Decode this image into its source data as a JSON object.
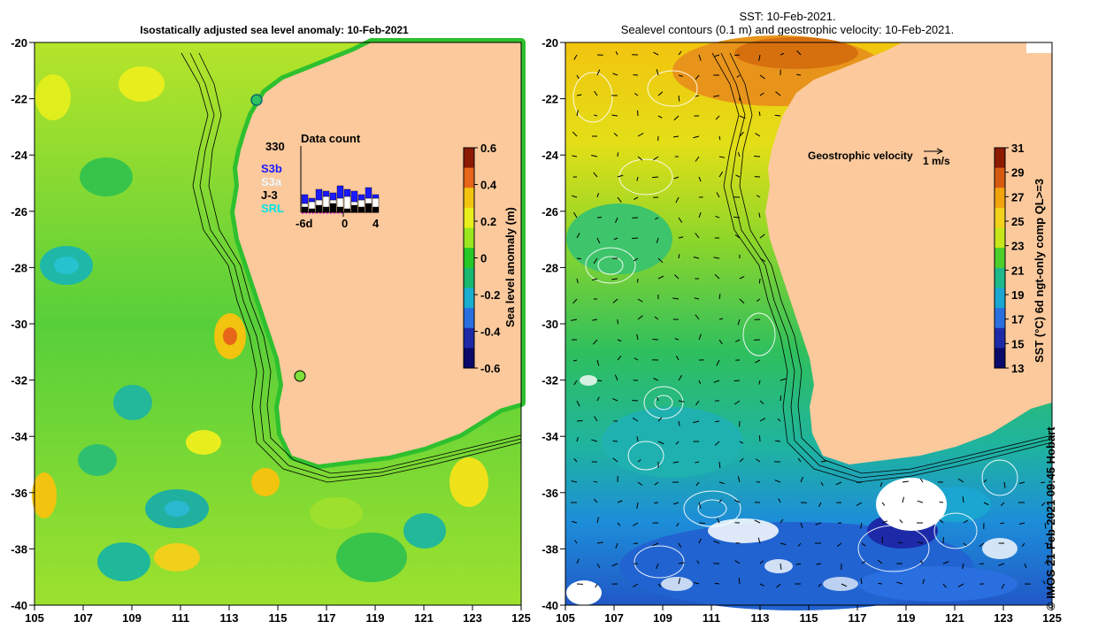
{
  "left_panel": {
    "title": "Isostatically adjusted sea level anomaly: 10-Feb-2021",
    "x_ticks": [
      "105",
      "107",
      "109",
      "111",
      "113",
      "115",
      "117",
      "119",
      "121",
      "123",
      "125"
    ],
    "y_ticks": [
      "-20",
      "-22",
      "-24",
      "-26",
      "-28",
      "-30",
      "-32",
      "-34",
      "-36",
      "-38",
      "-40"
    ],
    "colorbar": {
      "label": "Sea level anomaly (m)",
      "ticks": [
        "0.6",
        "0.4",
        "0.2",
        "0",
        "-0.2",
        "-0.4",
        "-0.6"
      ],
      "colors": [
        "#8b1a00",
        "#e8661a",
        "#f2c40f",
        "#e9ef1c",
        "#9ae620",
        "#27c826",
        "#18b86e",
        "#1aaed0",
        "#2a6fe0",
        "#1d2aa8",
        "#0a0a6a"
      ]
    },
    "inset": {
      "count_max": "330",
      "title": "Data count",
      "legend": [
        {
          "label": "S3b",
          "color": "#1a1aff"
        },
        {
          "label": "S3a",
          "color": "#ffffff"
        },
        {
          "label": "J-3",
          "color": "#000000"
        },
        {
          "label": "SRL",
          "color": "#00e5e5"
        }
      ],
      "x_labels": [
        "-6d",
        "0",
        "4"
      ]
    }
  },
  "right_panel": {
    "title_line1": "SST: 10-Feb-2021.",
    "title_line2": "Sealevel contours (0.1 m) and geostrophic velocity: 10-Feb-2021.",
    "x_ticks": [
      "105",
      "107",
      "109",
      "111",
      "113",
      "115",
      "117",
      "119",
      "121",
      "123",
      "125"
    ],
    "y_ticks": [
      "-20",
      "-22",
      "-24",
      "-26",
      "-28",
      "-30",
      "-32",
      "-34",
      "-36",
      "-38",
      "-40"
    ],
    "velocity_label": "Geostrophic velocity",
    "velocity_scale": "1 m/s",
    "colorbar": {
      "label": "SST (°C) 6d ngt-only comp QL>=3",
      "ticks": [
        "31",
        "29",
        "27",
        "25",
        "23",
        "21",
        "19",
        "17",
        "15",
        "13"
      ],
      "colors": [
        "#8b1a00",
        "#d65a10",
        "#f2a40f",
        "#f2d21a",
        "#c6e61a",
        "#4ccf2c",
        "#1fb88a",
        "#1aa6d0",
        "#2a6fe0",
        "#1d2aa8",
        "#0a0a6a"
      ]
    }
  },
  "credit": "© IMOS 21-Feb-2021 09:45 Hobart",
  "colors": {
    "land": "#fbc99c",
    "ocean_base_left": "#4ccf2c",
    "ocean_base_right": "#3fc35a"
  }
}
